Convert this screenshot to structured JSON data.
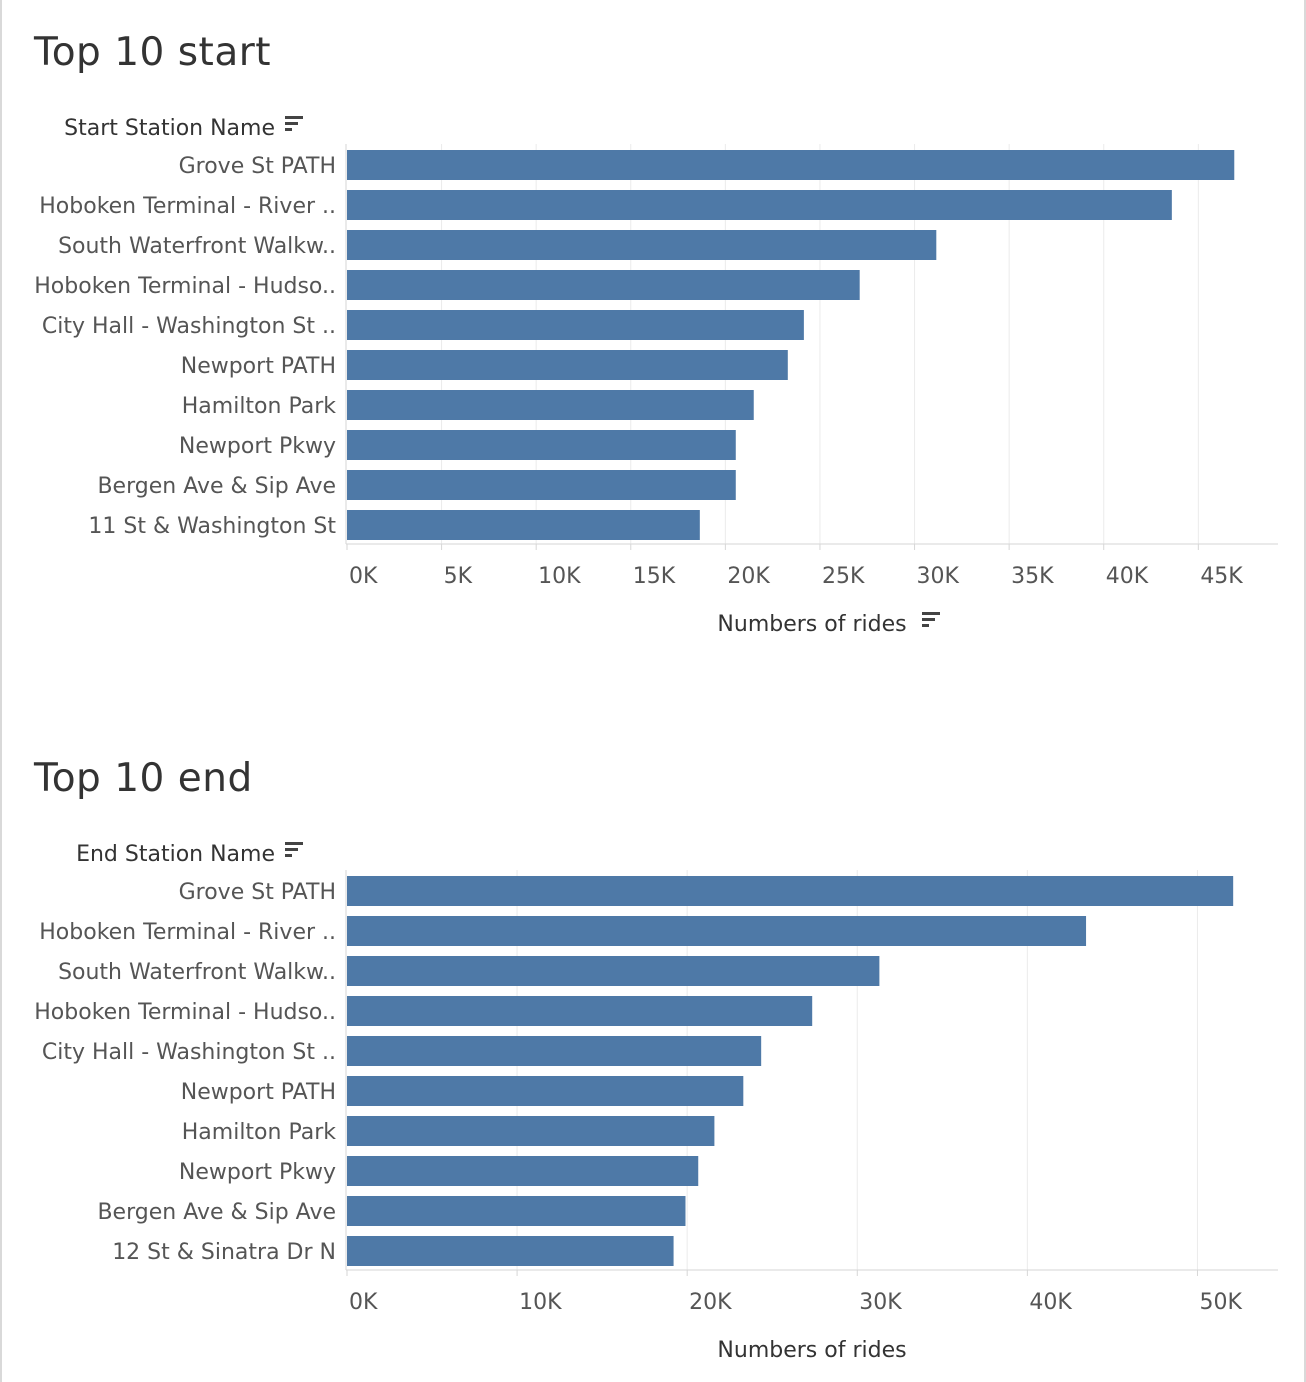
{
  "chart_data": [
    {
      "type": "bar",
      "orientation": "horizontal",
      "title": "Top 10 start",
      "dimension_label": "Start Station Name",
      "xlabel": "Numbers of rides",
      "xlim": [
        0,
        49000
      ],
      "tick_values": [
        0,
        5000,
        10000,
        15000,
        20000,
        25000,
        30000,
        35000,
        40000,
        45000
      ],
      "tick_labels": [
        "0K",
        "5K",
        "10K",
        "15K",
        "20K",
        "25K",
        "30K",
        "35K",
        "40K",
        "45K"
      ],
      "grid": true,
      "sorted_descending": true,
      "bar_color": "#4e79a7",
      "categories": [
        "Grove St PATH",
        "Hoboken Terminal - River ..",
        "South Waterfront Walkw..",
        "Hoboken Terminal - Hudso..",
        "City Hall - Washington St ..",
        "Newport PATH",
        "Hamilton Park",
        "Newport Pkwy",
        "Bergen Ave & Sip Ave",
        "11 St & Washington St"
      ],
      "values": [
        46900,
        43600,
        31150,
        27100,
        24150,
        23300,
        21500,
        20550,
        20550,
        18650
      ]
    },
    {
      "type": "bar",
      "orientation": "horizontal",
      "title": "Top 10 end",
      "dimension_label": "End Station Name",
      "xlabel": "Numbers of rides",
      "xlim": [
        0,
        54500
      ],
      "tick_values": [
        0,
        10000,
        20000,
        30000,
        40000,
        50000
      ],
      "tick_labels": [
        "0K",
        "10K",
        "20K",
        "30K",
        "40K",
        "50K"
      ],
      "grid": true,
      "sorted_descending": true,
      "bar_color": "#4e79a7",
      "categories": [
        "Grove St PATH",
        "Hoboken Terminal - River ..",
        "South Waterfront Walkw..",
        "Hoboken Terminal - Hudso..",
        "City Hall - Washington St ..",
        "Newport PATH",
        "Hamilton Park",
        "Newport Pkwy",
        "Bergen Ave & Sip Ave",
        "12 St & Sinatra Dr N"
      ],
      "values": [
        52100,
        43450,
        31300,
        27350,
        24350,
        23300,
        21600,
        20650,
        19900,
        19200
      ]
    }
  ],
  "icons": {
    "dimension_sort": "sort-descending-icon",
    "measure_sort": "sort-descending-icon"
  }
}
